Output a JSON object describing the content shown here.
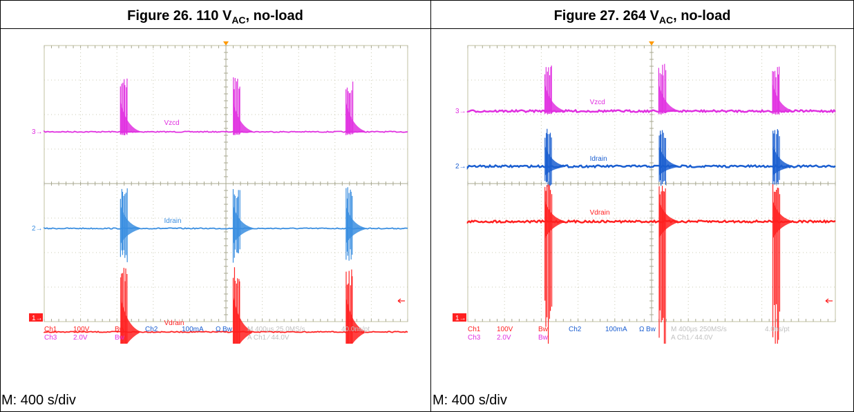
{
  "figures": [
    {
      "title_prefix": "Figure 26. 110 V",
      "title_sub": "AC",
      "title_suffix": ", no-load",
      "caption": "M: 400 s/div",
      "chart_data": {
        "type": "line",
        "title": "",
        "grid": true,
        "series": [
          {
            "name": "Vzcd",
            "color": "#e030e0",
            "ref_marker": "3",
            "level_div": 2.5,
            "burst_height_div": 1.6,
            "burst_depth_div": 0.1
          },
          {
            "name": "Idrain",
            "color": "#3a8ee0",
            "ref_marker": "2",
            "level_div": 5.3,
            "burst_height_div": 1.2,
            "burst_depth_div": 1.0
          },
          {
            "name": "Vdrain",
            "color": "#ff2020",
            "ref_marker": "1",
            "level_div": 8.3,
            "burst_height_div": 1.9,
            "burst_depth_div": 1.6
          }
        ],
        "burst_positions_div": [
          2.1,
          5.2,
          8.3
        ],
        "readout": {
          "row1": [
            "Ch1",
            "100V",
            "Bw",
            "Ch2",
            "100mA",
            "Ω",
            "Bw",
            "M 400µs 25.0MS/s",
            "40.0ns/pt"
          ],
          "row2": [
            "Ch3",
            "2.0V",
            "Bw",
            "A  Ch1  ∕  44.0V"
          ]
        }
      }
    },
    {
      "title_prefix": "Figure 27. 264 V",
      "title_sub": "AC",
      "title_suffix": ", no-load",
      "caption": "M: 400 s/div",
      "chart_data": {
        "type": "line",
        "title": "",
        "grid": true,
        "series": [
          {
            "name": "Vzcd",
            "color": "#e030e0",
            "ref_marker": "3",
            "level_div": 1.9,
            "burst_height_div": 1.4,
            "burst_depth_div": 0.1
          },
          {
            "name": "Idrain",
            "color": "#1a5ed0",
            "ref_marker": "2",
            "level_div": 3.5,
            "burst_height_div": 1.1,
            "burst_depth_div": 0.6
          },
          {
            "name": "Vdrain",
            "color": "#ff2020",
            "ref_marker": "1",
            "level_div": 5.1,
            "burst_height_div": 1.1,
            "burst_depth_div": 3.8
          }
        ],
        "burst_positions_div": [
          2.1,
          5.2,
          8.3
        ],
        "readout": {
          "row1": [
            "Ch1",
            "100V",
            "Bw",
            "Ch2",
            "100mA",
            "Ω",
            "Bw",
            "M 400µs 250MS/s",
            "4.0ns/pt"
          ],
          "row2": [
            "Ch3",
            "2.0V",
            "Bw",
            "A  Ch1  ∕  44.0V"
          ]
        }
      }
    }
  ]
}
